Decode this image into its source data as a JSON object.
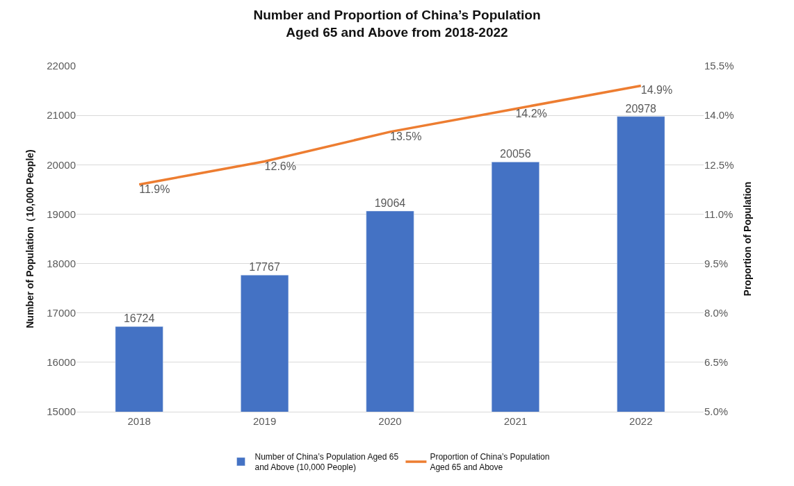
{
  "chart_data": {
    "type": "bar",
    "title": "Number and Proportion of China’s Population Aged 65 and Above from 2018-2022",
    "categories": [
      "2018",
      "2019",
      "2020",
      "2021",
      "2022"
    ],
    "ylabel": "Number of Population（10,000 People)",
    "y2label": "Proportion of Population",
    "series": [
      {
        "name": "Number of China’s Population Aged 65 and Above (10,000 People)",
        "color": "#4472c4",
        "values": [
          16724,
          17767,
          19064,
          20056,
          20978
        ],
        "value_labels": [
          "16724",
          "17767",
          "19064",
          "20056",
          "20978"
        ]
      },
      {
        "name": "Proportion of China’s Population Aged 65 and Above",
        "type": "line",
        "axis": "y2",
        "color": "#ed7d31",
        "values": [
          11.9,
          12.6,
          13.5,
          14.2,
          14.9
        ],
        "value_labels": [
          "11.9%",
          "12.6%",
          "13.5%",
          "14.2%",
          "14.9%"
        ]
      }
    ],
    "ylim": [
      15000,
      22000
    ],
    "yticks": [
      15000,
      16000,
      17000,
      18000,
      19000,
      20000,
      21000,
      22000
    ],
    "y2lim": [
      5.0,
      15.5
    ],
    "y2ticks": [
      {
        "value": 5.0,
        "label": "5.0%"
      },
      {
        "value": 6.5,
        "label": "6.5%"
      },
      {
        "value": 8.0,
        "label": "8.0%"
      },
      {
        "value": 9.5,
        "label": "9.5%"
      },
      {
        "value": 11.0,
        "label": "11.0%"
      },
      {
        "value": 12.5,
        "label": "12.5%"
      },
      {
        "value": 14.0,
        "label": "14.0%"
      },
      {
        "value": 15.5,
        "label": "15.5%"
      }
    ],
    "grid": "y",
    "legend": "bottom",
    "marker": "none"
  }
}
